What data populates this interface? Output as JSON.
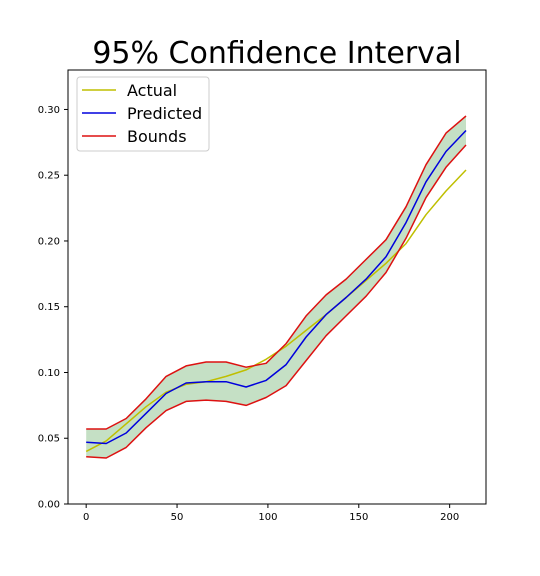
{
  "chart_data": {
    "type": "line",
    "title": "95% Confidence Interval",
    "xlabel": "",
    "ylabel": "",
    "xlim": [
      -10,
      220
    ],
    "ylim": [
      0.0,
      0.33
    ],
    "x_ticks": [
      "0",
      "50",
      "100",
      "150",
      "200"
    ],
    "y_ticks": [
      "0.00",
      "0.05",
      "0.10",
      "0.15",
      "0.20",
      "0.25",
      "0.30"
    ],
    "grid": false,
    "legend_position": "top-left",
    "x": [
      0,
      11,
      22,
      33,
      44,
      55,
      66,
      77,
      88,
      99,
      110,
      121,
      132,
      143,
      154,
      165,
      176,
      187,
      198,
      209
    ],
    "series": [
      {
        "name": "Actual",
        "color": "#bfbf00",
        "values": [
          0.04,
          0.048,
          0.061,
          0.074,
          0.085,
          0.091,
          0.093,
          0.097,
          0.102,
          0.11,
          0.12,
          0.132,
          0.144,
          0.157,
          0.17,
          0.183,
          0.198,
          0.22,
          0.238,
          0.254
        ]
      },
      {
        "name": "Predicted",
        "color": "#0000dd",
        "values": [
          0.047,
          0.046,
          0.054,
          0.069,
          0.084,
          0.092,
          0.093,
          0.093,
          0.089,
          0.094,
          0.106,
          0.127,
          0.144,
          0.157,
          0.171,
          0.188,
          0.214,
          0.245,
          0.268,
          0.284
        ]
      },
      {
        "name": "Bounds",
        "color": "#dd1111",
        "upper": [
          0.057,
          0.057,
          0.065,
          0.08,
          0.097,
          0.105,
          0.108,
          0.108,
          0.104,
          0.107,
          0.122,
          0.143,
          0.159,
          0.171,
          0.186,
          0.201,
          0.226,
          0.258,
          0.282,
          0.295
        ],
        "lower": [
          0.036,
          0.035,
          0.043,
          0.058,
          0.071,
          0.078,
          0.079,
          0.078,
          0.075,
          0.081,
          0.09,
          0.109,
          0.128,
          0.143,
          0.158,
          0.176,
          0.202,
          0.233,
          0.256,
          0.273
        ]
      }
    ],
    "band_fill": "#c5e0c5"
  }
}
